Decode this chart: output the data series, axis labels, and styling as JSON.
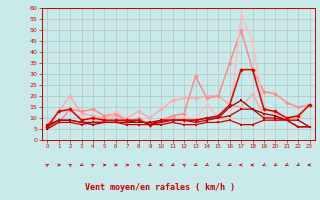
{
  "bg_color": "#c8eaea",
  "grid_color": "#aabbbb",
  "xlabel": "Vent moyen/en rafales ( km/h )",
  "x": [
    0,
    1,
    2,
    3,
    4,
    5,
    6,
    7,
    8,
    9,
    10,
    11,
    12,
    13,
    14,
    15,
    16,
    17,
    18,
    19,
    20,
    21,
    22,
    23
  ],
  "ylim": [
    0,
    60
  ],
  "yticks": [
    0,
    5,
    10,
    15,
    20,
    25,
    30,
    35,
    40,
    45,
    50,
    55,
    60
  ],
  "series": [
    {
      "y": [
        5,
        8,
        8,
        7,
        8,
        8,
        8,
        7,
        7,
        7,
        7,
        8,
        7,
        7,
        8,
        8,
        9,
        7,
        7,
        9,
        9,
        9,
        6,
        6
      ],
      "color": "#cc0000",
      "lw": 0.9,
      "marker": "s",
      "ms": 1.8,
      "zorder": 6
    },
    {
      "y": [
        6,
        9,
        9,
        8,
        8,
        8,
        8,
        8,
        9,
        7,
        8,
        9,
        9,
        8,
        9,
        10,
        11,
        14,
        14,
        10,
        10,
        9,
        6,
        6
      ],
      "color": "#bb0000",
      "lw": 0.9,
      "marker": "s",
      "ms": 1.8,
      "zorder": 5
    },
    {
      "y": [
        7,
        9,
        9,
        8,
        7,
        8,
        8,
        8,
        8,
        8,
        9,
        9,
        9,
        9,
        10,
        10,
        15,
        18,
        14,
        12,
        11,
        9,
        9,
        6
      ],
      "color": "#990000",
      "lw": 0.9,
      "marker": "s",
      "ms": 1.8,
      "zorder": 4
    },
    {
      "y": [
        6,
        13,
        14,
        9,
        10,
        9,
        9,
        9,
        9,
        7,
        9,
        9,
        9,
        9,
        10,
        11,
        16,
        32,
        32,
        14,
        13,
        10,
        11,
        16
      ],
      "color": "#dd0000",
      "lw": 1.1,
      "marker": "D",
      "ms": 2.2,
      "zorder": 7
    },
    {
      "y": [
        6,
        13,
        20,
        12,
        11,
        10,
        11,
        10,
        13,
        10,
        14,
        18,
        19,
        19,
        20,
        20,
        16,
        15,
        21,
        11,
        9,
        10,
        10,
        16
      ],
      "color": "#ffaaaa",
      "lw": 1.1,
      "marker": "D",
      "ms": 2.2,
      "zorder": 2
    },
    {
      "y": [
        6,
        8,
        14,
        13,
        14,
        11,
        12,
        8,
        10,
        7,
        9,
        11,
        12,
        29,
        19,
        20,
        35,
        50,
        32,
        22,
        21,
        17,
        15,
        16
      ],
      "color": "#ff8888",
      "lw": 1.1,
      "marker": "D",
      "ms": 2.2,
      "zorder": 2
    },
    {
      "y": [
        7,
        13,
        13,
        10,
        9,
        8,
        13,
        9,
        9,
        8,
        9,
        10,
        10,
        10,
        16,
        10,
        9,
        57,
        45,
        14,
        12,
        9,
        9,
        6
      ],
      "color": "#ffbbbb",
      "lw": 1.1,
      "marker": "D",
      "ms": 2.2,
      "zorder": 2
    }
  ],
  "wind_angles": [
    45,
    90,
    315,
    225,
    45,
    90,
    90,
    90,
    315,
    225,
    270,
    225,
    315,
    225,
    225,
    225,
    225,
    270,
    270,
    225,
    225,
    225,
    225,
    270
  ],
  "arrow_color": "#cc0000"
}
